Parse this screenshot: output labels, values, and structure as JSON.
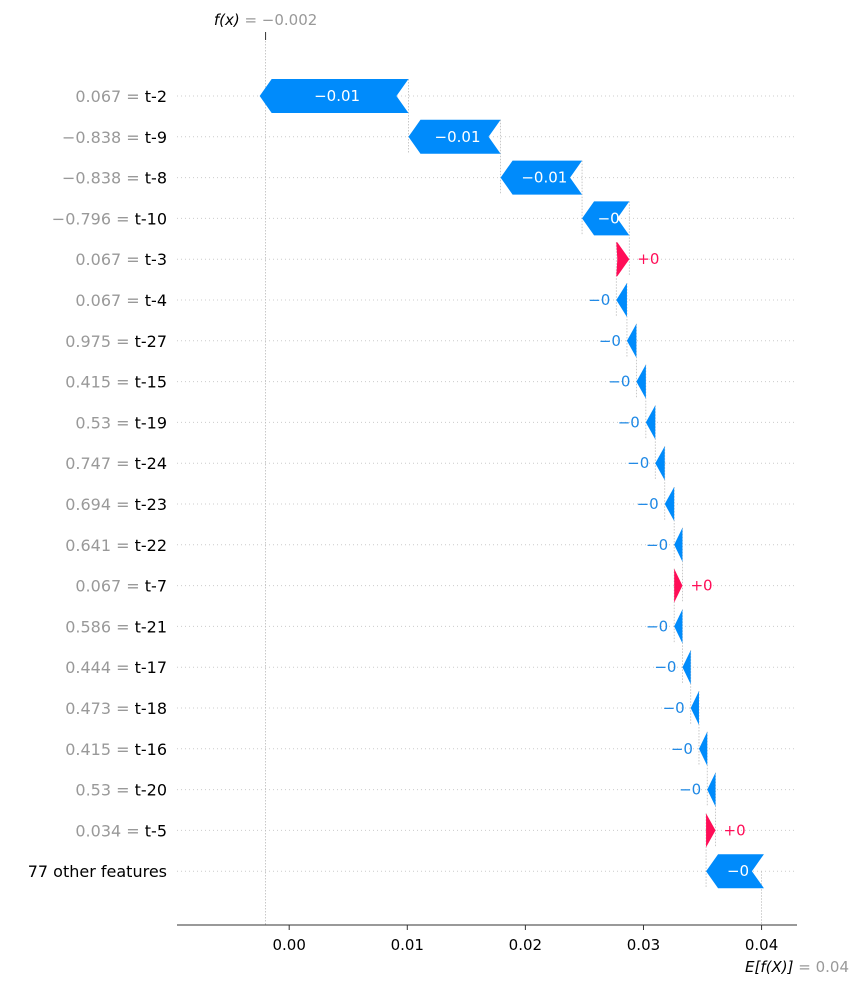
{
  "chart_data": {
    "type": "waterfall",
    "fx_label": "f(x)",
    "fx_value": -0.002,
    "fx_value_text": "= −0.002",
    "efx_label": "E[f(X)]",
    "base_value": 0.04,
    "base_value_text": "= 0.04",
    "xlim": [
      -0.0095,
      0.043
    ],
    "xticks": [
      {
        "value": 0.0,
        "label": "0.00"
      },
      {
        "value": 0.01,
        "label": "0.01"
      },
      {
        "value": 0.02,
        "label": "0.02"
      },
      {
        "value": 0.03,
        "label": "0.03"
      },
      {
        "value": 0.04,
        "label": "0.04"
      }
    ],
    "colors": {
      "positive": "#ff0d57",
      "negative": "#008bfb",
      "negative_text": "#1e88e5"
    },
    "features": [
      {
        "value": "0.067",
        "name": "t-2",
        "start": 0.0101,
        "end": -0.0025,
        "label": "−0.01"
      },
      {
        "value": "−0.838",
        "name": "t-9",
        "start": 0.0179,
        "end": 0.0101,
        "label": "−0.01"
      },
      {
        "value": "−0.838",
        "name": "t-8",
        "start": 0.0248,
        "end": 0.0179,
        "label": "−0.01"
      },
      {
        "value": "−0.796",
        "name": "t-10",
        "start": 0.0288,
        "end": 0.0248,
        "label": "−0"
      },
      {
        "value": "0.067",
        "name": "t-3",
        "start": 0.0277,
        "end": 0.0288,
        "label": "+0"
      },
      {
        "value": "0.067",
        "name": "t-4",
        "start": 0.0286,
        "end": 0.0277,
        "label": "−0"
      },
      {
        "value": "0.975",
        "name": "t-27",
        "start": 0.0294,
        "end": 0.0286,
        "label": "−0"
      },
      {
        "value": "0.415",
        "name": "t-15",
        "start": 0.0302,
        "end": 0.0294,
        "label": "−0"
      },
      {
        "value": "0.53",
        "name": "t-19",
        "start": 0.031,
        "end": 0.0302,
        "label": "−0"
      },
      {
        "value": "0.747",
        "name": "t-24",
        "start": 0.0318,
        "end": 0.031,
        "label": "−0"
      },
      {
        "value": "0.694",
        "name": "t-23",
        "start": 0.0326,
        "end": 0.0318,
        "label": "−0"
      },
      {
        "value": "0.641",
        "name": "t-22",
        "start": 0.0333,
        "end": 0.0326,
        "label": "−0"
      },
      {
        "value": "0.067",
        "name": "t-7",
        "start": 0.0326,
        "end": 0.0333,
        "label": "+0"
      },
      {
        "value": "0.586",
        "name": "t-21",
        "start": 0.0333,
        "end": 0.0326,
        "label": "−0"
      },
      {
        "value": "0.444",
        "name": "t-17",
        "start": 0.034,
        "end": 0.0333,
        "label": "−0"
      },
      {
        "value": "0.473",
        "name": "t-18",
        "start": 0.0347,
        "end": 0.034,
        "label": "−0"
      },
      {
        "value": "0.415",
        "name": "t-16",
        "start": 0.0354,
        "end": 0.0347,
        "label": "−0"
      },
      {
        "value": "0.53",
        "name": "t-20",
        "start": 0.0361,
        "end": 0.0354,
        "label": "−0"
      },
      {
        "value": "0.034",
        "name": "t-5",
        "start": 0.0353,
        "end": 0.0361,
        "label": "+0"
      },
      {
        "value": "",
        "name": "77 other features",
        "start": 0.0402,
        "end": 0.0353,
        "label": "−0"
      }
    ]
  }
}
